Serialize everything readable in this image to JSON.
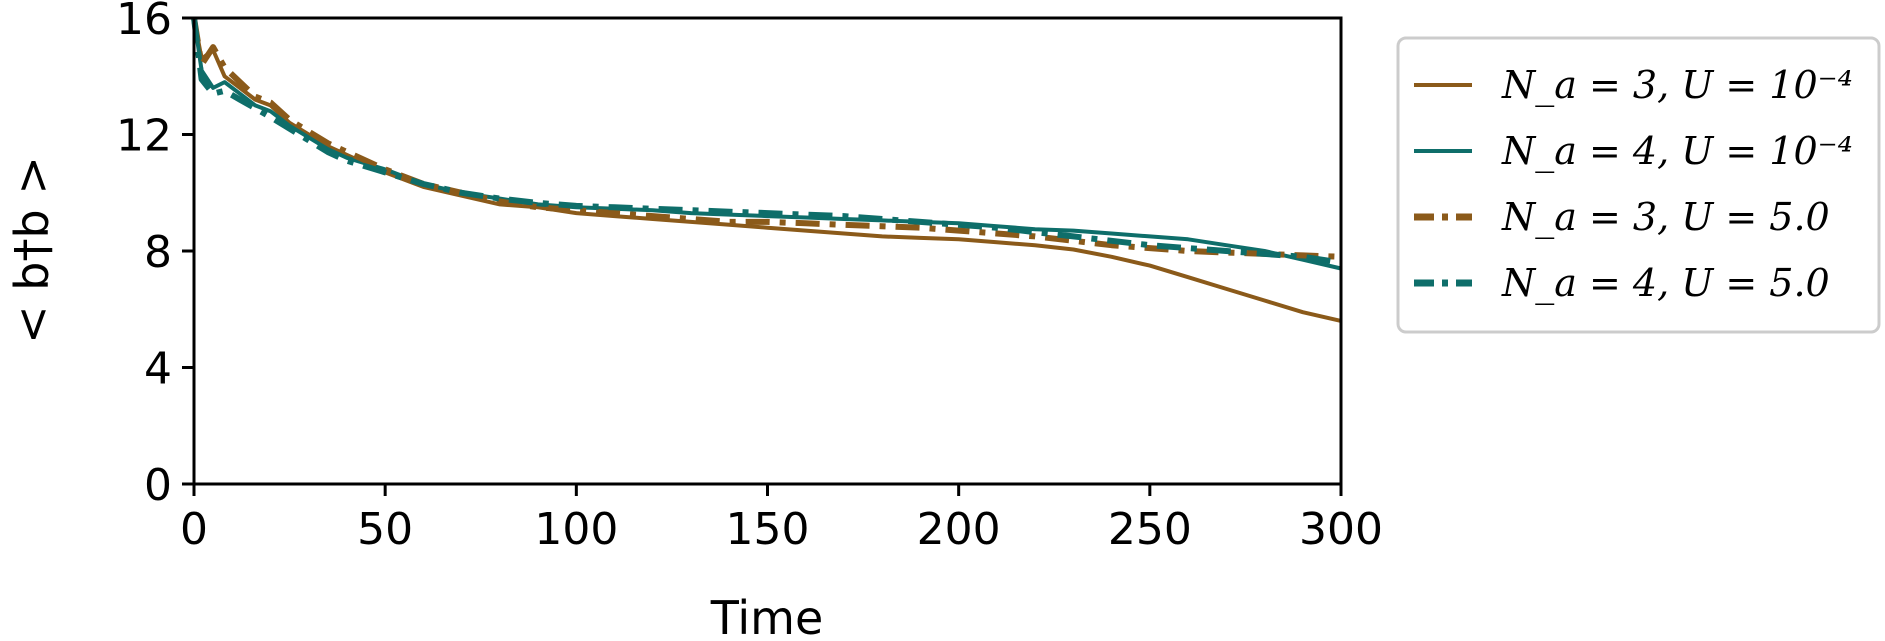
{
  "chart_data": {
    "type": "line",
    "xlabel": "Time",
    "ylabel": "< b†b >",
    "xlim": [
      0,
      300
    ],
    "ylim": [
      0,
      16
    ],
    "xticks": [
      "0",
      "50",
      "100",
      "150",
      "200",
      "250",
      "300"
    ],
    "yticks": [
      "0",
      "4",
      "8",
      "12",
      "16"
    ],
    "grid": false,
    "legend_position": "outside-right",
    "series": [
      {
        "name": "N_a = 3, U = 10⁻⁴",
        "color": "#8B5A1A",
        "dash": "solid",
        "x": [
          0,
          2,
          5,
          8,
          12,
          16,
          20,
          25,
          30,
          35,
          40,
          50,
          60,
          70,
          80,
          90,
          100,
          110,
          120,
          130,
          140,
          150,
          160,
          170,
          180,
          190,
          200,
          210,
          220,
          230,
          240,
          250,
          260,
          270,
          280,
          290,
          300
        ],
        "y": [
          16.0,
          14.6,
          14.9,
          14.0,
          13.6,
          13.2,
          13.0,
          12.4,
          12.0,
          11.6,
          11.3,
          10.7,
          10.2,
          9.9,
          9.6,
          9.5,
          9.3,
          9.2,
          9.1,
          9.0,
          8.9,
          8.8,
          8.7,
          8.6,
          8.5,
          8.45,
          8.4,
          8.3,
          8.2,
          8.05,
          7.8,
          7.5,
          7.1,
          6.7,
          6.3,
          5.9,
          5.6
        ]
      },
      {
        "name": "N_a = 4, U = 10⁻⁴",
        "color": "#0E6E6A",
        "dash": "solid",
        "x": [
          0,
          2,
          5,
          8,
          12,
          16,
          20,
          25,
          30,
          35,
          40,
          50,
          60,
          70,
          80,
          90,
          100,
          110,
          120,
          130,
          140,
          150,
          160,
          170,
          180,
          190,
          200,
          210,
          220,
          230,
          240,
          250,
          260,
          270,
          280,
          290,
          300
        ],
        "y": [
          16.0,
          14.2,
          13.6,
          13.8,
          13.4,
          13.0,
          12.8,
          12.3,
          11.9,
          11.5,
          11.2,
          10.8,
          10.3,
          10.0,
          9.8,
          9.6,
          9.5,
          9.45,
          9.4,
          9.3,
          9.25,
          9.2,
          9.15,
          9.1,
          9.05,
          9.0,
          8.95,
          8.85,
          8.75,
          8.7,
          8.6,
          8.5,
          8.4,
          8.2,
          8.0,
          7.7,
          7.4
        ]
      },
      {
        "name": "N_a = 3, U = 5.0",
        "color": "#8B5A1A",
        "dash": "dashdot",
        "x": [
          0,
          2,
          5,
          8,
          12,
          16,
          20,
          25,
          30,
          35,
          40,
          50,
          60,
          70,
          80,
          90,
          100,
          110,
          120,
          130,
          140,
          150,
          160,
          170,
          180,
          190,
          200,
          210,
          220,
          230,
          240,
          250,
          260,
          270,
          280,
          290,
          300
        ],
        "y": [
          16.0,
          14.4,
          15.0,
          14.3,
          13.8,
          13.3,
          13.1,
          12.5,
          12.1,
          11.7,
          11.4,
          10.8,
          10.3,
          10.0,
          9.7,
          9.5,
          9.4,
          9.3,
          9.2,
          9.1,
          9.0,
          9.0,
          8.95,
          8.9,
          8.85,
          8.8,
          8.7,
          8.6,
          8.5,
          8.35,
          8.2,
          8.1,
          8.0,
          7.95,
          7.9,
          7.85,
          7.8
        ]
      },
      {
        "name": "N_a = 4, U = 5.0",
        "color": "#0E6E6A",
        "dash": "dashdot",
        "x": [
          0,
          2,
          5,
          8,
          12,
          16,
          20,
          25,
          30,
          35,
          40,
          50,
          60,
          70,
          80,
          90,
          100,
          110,
          120,
          130,
          140,
          150,
          160,
          170,
          180,
          190,
          200,
          210,
          220,
          230,
          240,
          250,
          260,
          270,
          280,
          290,
          300
        ],
        "y": [
          16.0,
          13.9,
          13.4,
          13.5,
          13.2,
          12.9,
          12.6,
          12.2,
          11.8,
          11.4,
          11.1,
          10.7,
          10.3,
          10.0,
          9.8,
          9.65,
          9.55,
          9.5,
          9.45,
          9.4,
          9.35,
          9.3,
          9.25,
          9.2,
          9.1,
          9.0,
          8.9,
          8.8,
          8.65,
          8.5,
          8.35,
          8.2,
          8.1,
          8.0,
          7.9,
          7.8,
          7.6
        ]
      }
    ]
  }
}
